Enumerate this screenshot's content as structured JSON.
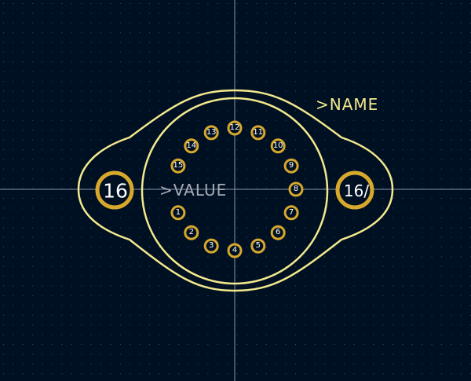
{
  "colors": {
    "background": "#001023",
    "grid_dot": "#3a4a66",
    "crosshair": "#8894a8",
    "silkscreen": "#f2e88c",
    "pad_ring": "#d7a82c",
    "pad_fill": "#001023",
    "value_text": "#a7aab4",
    "name_text": "#f2e88c"
  },
  "footprint": {
    "name_field": ">NAME",
    "value_field": ">VALUE",
    "mounting_pads": [
      "16",
      "16/"
    ],
    "pins": [
      "1",
      "2",
      "3",
      "4",
      "5",
      "6",
      "7",
      "8",
      "9",
      "10",
      "11",
      "12",
      "13",
      "14",
      "15"
    ]
  }
}
